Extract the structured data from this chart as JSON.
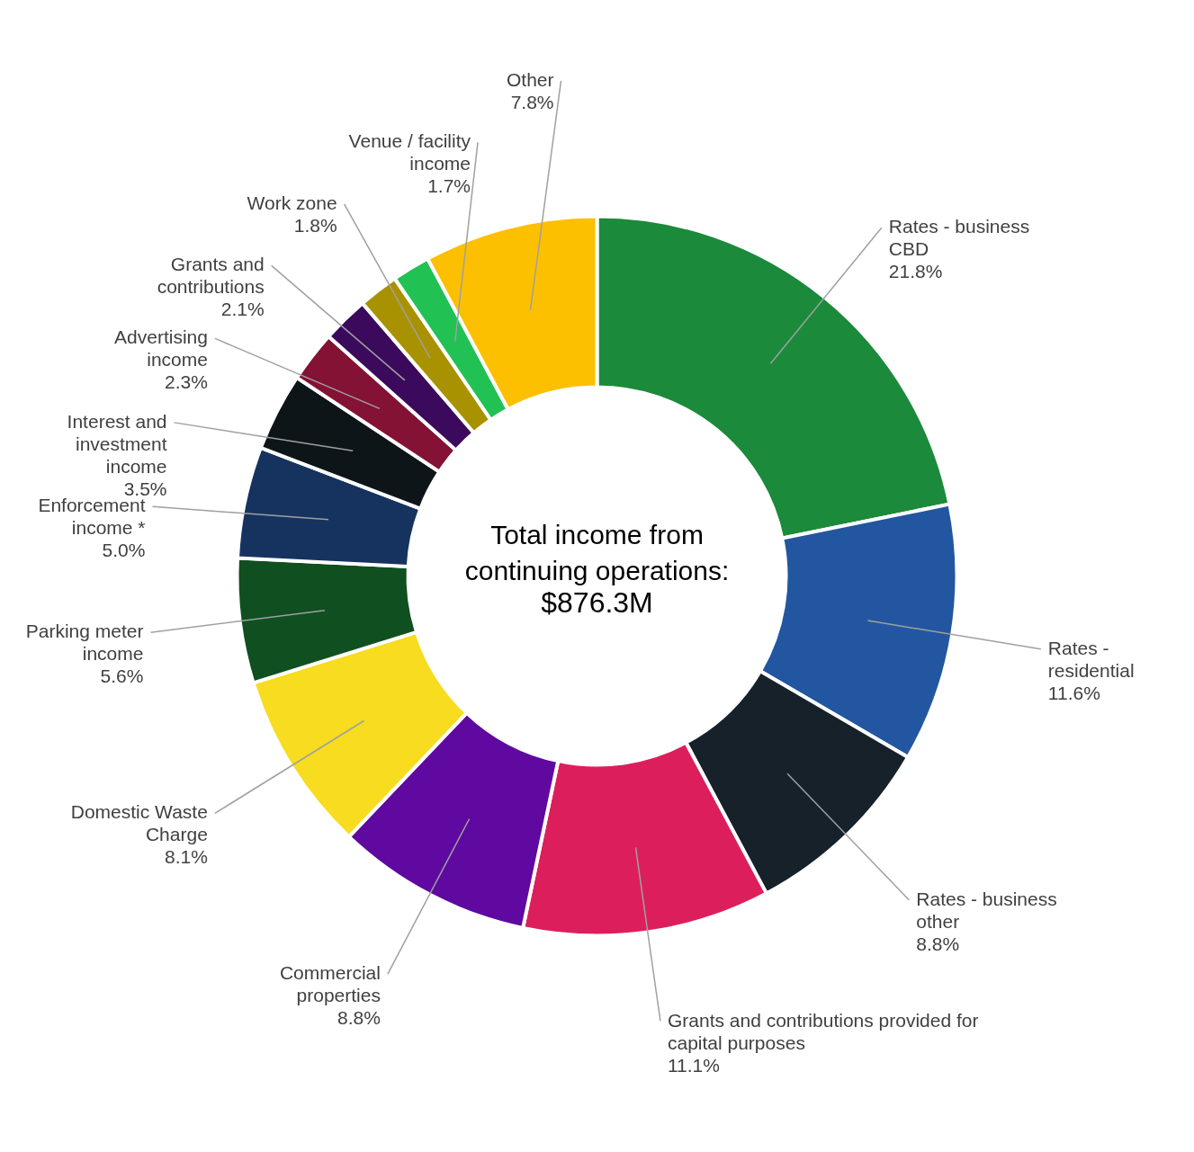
{
  "chart_data": {
    "type": "donut",
    "title": "Total income from continuing operations:",
    "subtitle": "$876.3M",
    "categories": [
      "Rates - business CBD",
      "Rates - residential",
      "Rates - business other",
      "Grants and contributions provided for capital purposes",
      "Commercial properties",
      "Domestic Waste Charge",
      "Parking meter income",
      "Enforcement income *",
      "Interest and investment income",
      "Advertising income",
      "Grants and contributions",
      "Work zone",
      "Venue / facility income",
      "Other"
    ],
    "values": [
      21.8,
      11.6,
      8.8,
      11.1,
      8.8,
      8.1,
      5.6,
      5.0,
      3.5,
      2.3,
      2.1,
      1.8,
      1.7,
      7.8
    ],
    "value_labels": [
      "21.8%",
      "11.6%",
      "8.8%",
      "11.1%",
      "8.8%",
      "8.1%",
      "5.6%",
      "5.0%",
      "3.5%",
      "2.3%",
      "2.1%",
      "1.8%",
      "1.7%",
      "7.8%"
    ],
    "colors": [
      "#1b8a3a",
      "#2356a0",
      "#16212a",
      "#dc1f5c",
      "#5f09a0",
      "#f7dc20",
      "#0f4f20",
      "#163360",
      "#0d1519",
      "#841234",
      "#3b0a5c",
      "#a89200",
      "#22c154",
      "#fcc000"
    ]
  }
}
